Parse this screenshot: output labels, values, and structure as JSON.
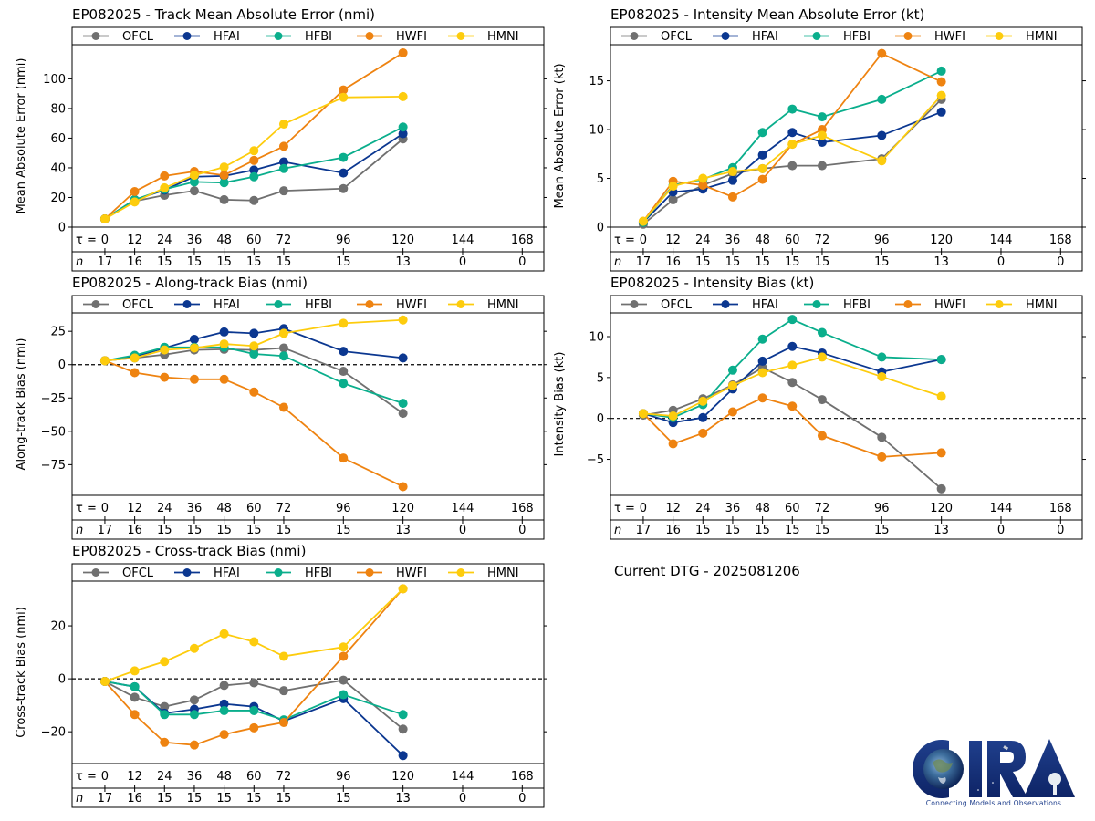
{
  "storm_id": "EP082025",
  "current_dtg_label": "Current DTG - 2025081206",
  "logo": {
    "name": "CIRA",
    "tagline": "Connecting Models and Observations"
  },
  "series_style": [
    {
      "name": "OFCL",
      "color": "#707070"
    },
    {
      "name": "HFAI",
      "color": "#0b3790"
    },
    {
      "name": "HFBI",
      "color": "#0aae8c"
    },
    {
      "name": "HWFI",
      "color": "#ee8311"
    },
    {
      "name": "HMNI",
      "color": "#fdcc0d"
    }
  ],
  "tau_label": "τ = ",
  "n_label": "n",
  "chart_data": [
    {
      "type": "line",
      "title": "EP082025 - Track Mean Absolute Error (nmi)",
      "xlabel": "",
      "ylabel": "Mean Absolute Error (nmi)",
      "x": [
        0,
        12,
        24,
        36,
        48,
        60,
        72,
        96,
        120
      ],
      "xticks": [
        0,
        12,
        24,
        36,
        48,
        60,
        72,
        96,
        120,
        144,
        168
      ],
      "n_counts": [
        17,
        16,
        15,
        15,
        15,
        15,
        15,
        15,
        13,
        0,
        0
      ],
      "ylim": [
        0,
        123
      ],
      "yticks": [
        0,
        20,
        40,
        60,
        80,
        100
      ],
      "zero_line": false,
      "legend": "top",
      "series": [
        {
          "name": "OFCL",
          "values": [
            5.5,
            17.5,
            21.5,
            24.5,
            18.5,
            18,
            24.5,
            26,
            59.5
          ]
        },
        {
          "name": "HFAI",
          "values": [
            5.5,
            18.5,
            25,
            34,
            34.5,
            38.5,
            44,
            36.5,
            63
          ]
        },
        {
          "name": "HFBI",
          "values": [
            5.5,
            18.5,
            25.5,
            30.5,
            30,
            34,
            39.5,
            47,
            67.5
          ]
        },
        {
          "name": "HWFI",
          "values": [
            5.5,
            24,
            34.5,
            37.5,
            35,
            45,
            54.5,
            92.5,
            117.5
          ]
        },
        {
          "name": "HMNI",
          "values": [
            5.5,
            17,
            26.5,
            35,
            40.5,
            51.5,
            69.5,
            87.5,
            88
          ]
        }
      ]
    },
    {
      "type": "line",
      "title": "EP082025 - Intensity Mean Absolute Error (kt)",
      "xlabel": "",
      "ylabel": "Mean Absolute Error (kt)",
      "x": [
        0,
        12,
        24,
        36,
        48,
        60,
        72,
        96,
        120
      ],
      "xticks": [
        0,
        12,
        24,
        36,
        48,
        60,
        72,
        96,
        120,
        144,
        168
      ],
      "n_counts": [
        17,
        16,
        15,
        15,
        15,
        15,
        15,
        15,
        13,
        0,
        0
      ],
      "ylim": [
        0,
        18.7
      ],
      "yticks": [
        0,
        5,
        10,
        15
      ],
      "zero_line": false,
      "legend": "top",
      "series": [
        {
          "name": "OFCL",
          "values": [
            0.3,
            2.8,
            4.3,
            5.5,
            6,
            6.3,
            6.3,
            7,
            13.1
          ]
        },
        {
          "name": "HFAI",
          "values": [
            0.5,
            3.6,
            3.9,
            4.8,
            7.4,
            9.7,
            8.7,
            9.4,
            11.8
          ]
        },
        {
          "name": "HFBI",
          "values": [
            0.5,
            4.3,
            4.9,
            6.1,
            9.7,
            12.1,
            11.3,
            13.1,
            16
          ]
        },
        {
          "name": "HWFI",
          "values": [
            0.6,
            4.7,
            4.3,
            3.1,
            4.9,
            8.5,
            10,
            17.8,
            14.9
          ]
        },
        {
          "name": "HMNI",
          "values": [
            0.6,
            4.2,
            5,
            5.7,
            6,
            8.5,
            9.4,
            6.8,
            13.5
          ]
        }
      ]
    },
    {
      "type": "line",
      "title": "EP082025 - Along-track Bias (nmi)",
      "xlabel": "",
      "ylabel": "Along-track Bias (nmi)",
      "x": [
        0,
        12,
        24,
        36,
        48,
        60,
        72,
        96,
        120
      ],
      "xticks": [
        0,
        12,
        24,
        36,
        48,
        60,
        72,
        96,
        120,
        144,
        168
      ],
      "n_counts": [
        17,
        16,
        15,
        15,
        15,
        15,
        15,
        15,
        13,
        0,
        0
      ],
      "ylim": [
        -98,
        38.8
      ],
      "yticks": [
        -75,
        -50,
        -25,
        0,
        25
      ],
      "zero_line": true,
      "legend": "top",
      "series": [
        {
          "name": "OFCL",
          "values": [
            3,
            5,
            7.5,
            11,
            11.5,
            11,
            12.5,
            -5,
            -36.5
          ]
        },
        {
          "name": "HFAI",
          "values": [
            3,
            6,
            12.5,
            19,
            24.5,
            23.5,
            27,
            10,
            5
          ]
        },
        {
          "name": "HFBI",
          "values": [
            3,
            7,
            13,
            13,
            13,
            8,
            6.5,
            -14,
            -29
          ]
        },
        {
          "name": "HWFI",
          "values": [
            3,
            -6,
            -9.5,
            -11,
            -11,
            -20.5,
            -32,
            -70,
            -91.5
          ]
        },
        {
          "name": "HMNI",
          "values": [
            3,
            5,
            11,
            12.5,
            15.5,
            14,
            23.5,
            31,
            33.5
          ]
        }
      ]
    },
    {
      "type": "line",
      "title": "EP082025 - Intensity Bias (kt)",
      "xlabel": "",
      "ylabel": "Intensity Bias (kt)",
      "x": [
        0,
        12,
        24,
        36,
        48,
        60,
        72,
        96,
        120
      ],
      "xticks": [
        0,
        12,
        24,
        36,
        48,
        60,
        72,
        96,
        120,
        144,
        168
      ],
      "n_counts": [
        17,
        16,
        15,
        15,
        15,
        15,
        15,
        15,
        13,
        0,
        0
      ],
      "ylim": [
        -9.4,
        12.9
      ],
      "yticks": [
        -5,
        0,
        5,
        10
      ],
      "zero_line": true,
      "legend": "top",
      "series": [
        {
          "name": "OFCL",
          "values": [
            0.4,
            1,
            2.4,
            4.1,
            6.2,
            4.4,
            2.3,
            -2.3,
            -8.6
          ]
        },
        {
          "name": "HFAI",
          "values": [
            0.6,
            -0.5,
            0.1,
            3.6,
            7,
            8.8,
            8,
            5.7,
            7.2
          ]
        },
        {
          "name": "HFBI",
          "values": [
            0.6,
            0.1,
            1.7,
            5.9,
            9.7,
            12.1,
            10.5,
            7.5,
            7.2
          ]
        },
        {
          "name": "HWFI",
          "values": [
            0.6,
            -3.1,
            -1.8,
            0.8,
            2.5,
            1.5,
            -2.1,
            -4.7,
            -4.2
          ]
        },
        {
          "name": "HMNI",
          "values": [
            0.6,
            0.3,
            2.1,
            4,
            5.6,
            6.5,
            7.5,
            5.1,
            2.7
          ]
        }
      ]
    },
    {
      "type": "line",
      "title": "EP082025 - Cross-track Bias (nmi)",
      "xlabel": "",
      "ylabel": "Cross-track Bias (nmi)",
      "x": [
        0,
        12,
        24,
        36,
        48,
        60,
        72,
        96,
        120
      ],
      "xticks": [
        0,
        12,
        24,
        36,
        48,
        60,
        72,
        96,
        120,
        144,
        168
      ],
      "n_counts": [
        17,
        16,
        15,
        15,
        15,
        15,
        15,
        15,
        13,
        0,
        0
      ],
      "ylim": [
        -32,
        36.9
      ],
      "yticks": [
        -20,
        0,
        20
      ],
      "zero_line": true,
      "legend": "top",
      "series": [
        {
          "name": "OFCL",
          "values": [
            -1,
            -7,
            -10.5,
            -8,
            -2.5,
            -1.5,
            -4.5,
            -0.5,
            -19
          ]
        },
        {
          "name": "HFAI",
          "values": [
            -1,
            -3,
            -13,
            -11.5,
            -9.5,
            -10.5,
            -16,
            -7.5,
            -29
          ]
        },
        {
          "name": "HFBI",
          "values": [
            -1,
            -3,
            -13.5,
            -13.5,
            -12,
            -12,
            -15.5,
            -6,
            -13.5
          ]
        },
        {
          "name": "HWFI",
          "values": [
            -1,
            -13.5,
            -24,
            -25,
            -21,
            -18.5,
            -16.5,
            8.5,
            34
          ]
        },
        {
          "name": "HMNI",
          "values": [
            -1,
            3,
            6.5,
            11.5,
            17,
            14,
            8.5,
            12,
            34
          ]
        }
      ]
    }
  ]
}
